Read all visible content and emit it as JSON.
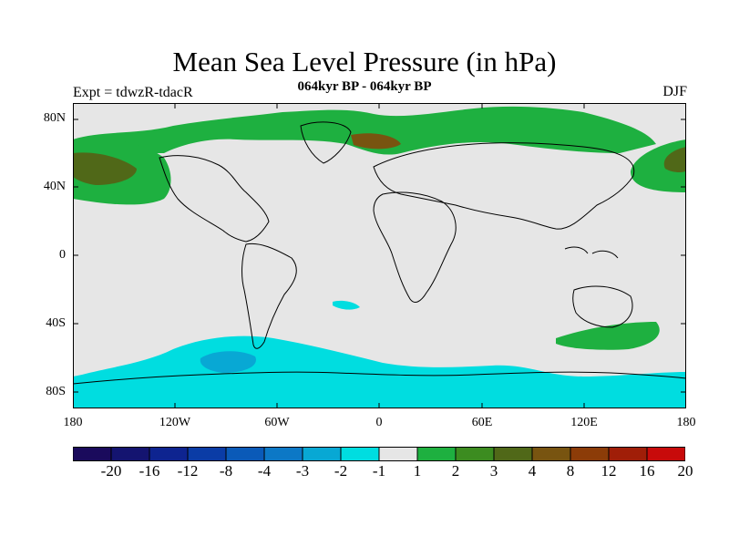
{
  "title": "Mean Sea Level Pressure (in hPa)",
  "subtitle": "064kyr BP - 064kyr BP",
  "left_label": "Expt = tdwzR-tdacR",
  "right_label": "DJF",
  "lat_labels": [
    "80N",
    "40N",
    "0",
    "40S",
    "80S"
  ],
  "lon_labels": [
    "180",
    "120W",
    "60W",
    "0",
    "60E",
    "120E",
    "180"
  ],
  "colorbar": {
    "labels": [
      "-20",
      "-16",
      "-12",
      "-8",
      "-4",
      "-3",
      "-2",
      "-1",
      "1",
      "2",
      "3",
      "4",
      "8",
      "12",
      "16",
      "20"
    ],
    "colors": [
      "#1a0a5c",
      "#141470",
      "#0e2490",
      "#0a3ca6",
      "#0a5ab8",
      "#0c78c6",
      "#08a8d4",
      "#00dde0",
      "#e6e6e6",
      "#1eb040",
      "#3c8c20",
      "#506818",
      "#785410",
      "#8c3c08",
      "#a01e08",
      "#c80a0a"
    ]
  },
  "chart_data": {
    "type": "heatmap",
    "title": "Mean Sea Level Pressure (in hPa)",
    "subtitle": "064kyr BP - 064kyr BP",
    "xlim": [
      -180,
      180
    ],
    "ylim": [
      -90,
      90
    ],
    "x_ticks": [
      "180",
      "120W",
      "60W",
      "0",
      "60E",
      "120E",
      "180"
    ],
    "y_ticks": [
      "80N",
      "40N",
      "0",
      "40S",
      "80S"
    ],
    "contour_levels": [
      -20,
      -16,
      -12,
      -8,
      -4,
      -3,
      -2,
      -1,
      1,
      2,
      3,
      4,
      8,
      12,
      16,
      20
    ]
  }
}
